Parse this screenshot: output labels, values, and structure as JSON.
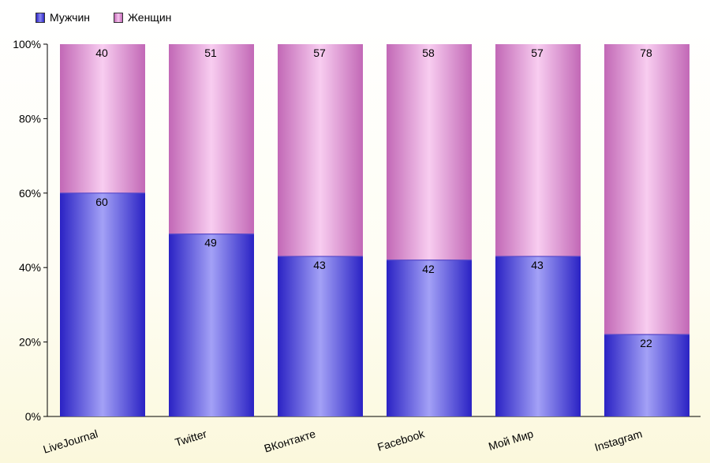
{
  "legend": {
    "men_label": "Мужчин",
    "women_label": "Женщин"
  },
  "colors": {
    "men": "#3d35dc",
    "men_highlight": "#9e9cf4",
    "women": "#d67fca",
    "women_highlight": "#f6c4ee"
  },
  "chart_data": {
    "type": "bar",
    "stacked": true,
    "categories": [
      "LiveJournal",
      "Twitter",
      "ВКонтакте",
      "Facebook",
      "Мой Мир",
      "Instagram"
    ],
    "series": [
      {
        "name": "Мужчин",
        "values": [
          60,
          49,
          43,
          42,
          43,
          22
        ]
      },
      {
        "name": "Женщин",
        "values": [
          40,
          51,
          57,
          58,
          57,
          78
        ]
      }
    ],
    "ylim": [
      0,
      100
    ],
    "yticks": [
      "0%",
      "20%",
      "40%",
      "60%",
      "80%",
      "100%"
    ],
    "grid": false,
    "legend_position": "top-left"
  }
}
